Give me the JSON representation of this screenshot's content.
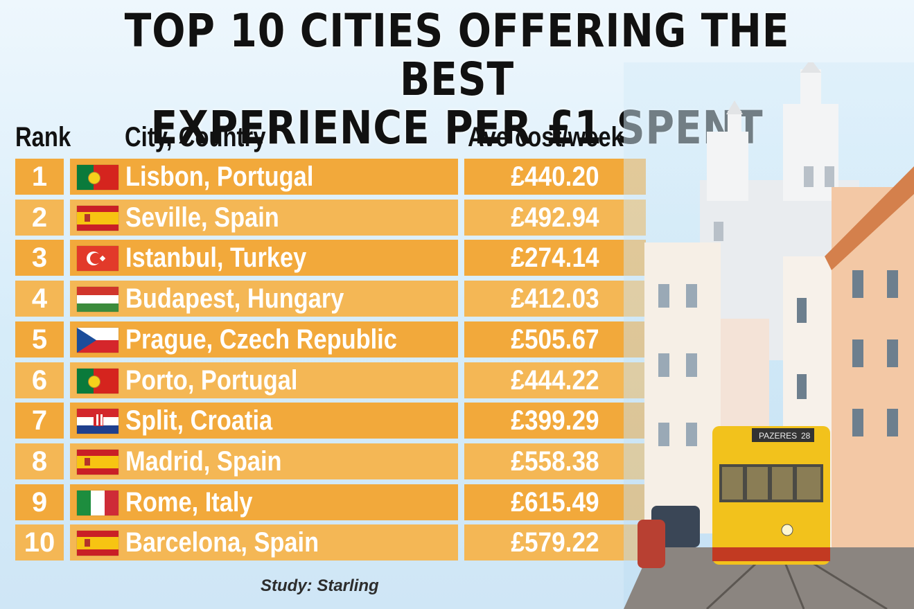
{
  "title_line1": "TOP 10 CITIES OFFERING THE BEST",
  "title_line2": "EXPERIENCE PER £1 SPENT",
  "headers": {
    "rank": "Rank",
    "city": "City, Country",
    "cost": "Ave cost/week"
  },
  "source": "Study: Starling",
  "photo": {
    "tram_sign": "PAZERES",
    "tram_number": "28"
  },
  "chart_data": {
    "type": "table",
    "columns": [
      "Rank",
      "City, Country",
      "Ave cost/week"
    ],
    "rows": [
      {
        "rank": "1",
        "city": "Lisbon, Portugal",
        "cost": "£440.20",
        "flag": "portugal"
      },
      {
        "rank": "2",
        "city": "Seville, Spain",
        "cost": "£492.94",
        "flag": "spain"
      },
      {
        "rank": "3",
        "city": "Istanbul, Turkey",
        "cost": "£274.14",
        "flag": "turkey"
      },
      {
        "rank": "4",
        "city": "Budapest, Hungary",
        "cost": "£412.03",
        "flag": "hungary"
      },
      {
        "rank": "5",
        "city": "Prague, Czech Republic",
        "cost": "£505.67",
        "flag": "czech"
      },
      {
        "rank": "6",
        "city": "Porto, Portugal",
        "cost": "£444.22",
        "flag": "portugal"
      },
      {
        "rank": "7",
        "city": "Split, Croatia",
        "cost": "£399.29",
        "flag": "croatia"
      },
      {
        "rank": "8",
        "city": "Madrid, Spain",
        "cost": "£558.38",
        "flag": "spain"
      },
      {
        "rank": "9",
        "city": "Rome, Italy",
        "cost": "£615.49",
        "flag": "italy"
      },
      {
        "rank": "10",
        "city": "Barcelona, Spain",
        "cost": "£579.22",
        "flag": "spain"
      }
    ]
  },
  "colors": {
    "cell": "#f2a93b",
    "cell_alt": "#f4b755",
    "text": "#ffffff",
    "heading": "#111111"
  }
}
